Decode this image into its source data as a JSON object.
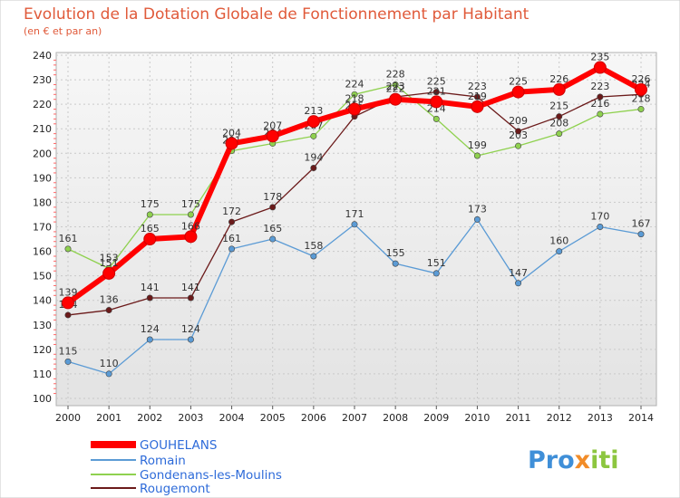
{
  "chart_data": {
    "type": "line",
    "title": "Evolution de la Dotation Globale de Fonctionnement par Habitant",
    "subtitle": "(en € et par an)",
    "xlabel": "",
    "ylabel": "",
    "x": [
      "2000",
      "2001",
      "2002",
      "2003",
      "2004",
      "2005",
      "2006",
      "2007",
      "2008",
      "2009",
      "2010",
      "2011",
      "2012",
      "2013",
      "2014"
    ],
    "ylim": [
      100,
      240
    ],
    "yticks": [
      "100",
      "110",
      "120",
      "130",
      "140",
      "150",
      "160",
      "170",
      "180",
      "190",
      "200",
      "210",
      "220",
      "230",
      "240"
    ],
    "grid": true,
    "legend": "bottom-left",
    "series": [
      {
        "name": "GOUHELANS",
        "color": "#ff0000",
        "values": [
          139,
          151,
          165,
          166,
          204,
          207,
          213,
          218,
          222,
          221,
          219,
          225,
          226,
          235,
          226
        ],
        "labels": [
          "139",
          "151",
          "165",
          "166",
          "204",
          "207",
          "213",
          "218",
          "222",
          "221",
          "219",
          "225",
          "226",
          "235",
          "226"
        ]
      },
      {
        "name": "Romain",
        "color": "#5b9bd5",
        "values": [
          115,
          110,
          124,
          124,
          161,
          165,
          158,
          171,
          155,
          151,
          173,
          147,
          160,
          170,
          167
        ],
        "labels": [
          "115",
          "110",
          "124",
          "124",
          "161",
          "165",
          "158",
          "171",
          "155",
          "151",
          "173",
          "147",
          "160",
          "170",
          "167"
        ]
      },
      {
        "name": "Gondenans-les-Moulins",
        "color": "#8fd14f",
        "values": [
          161,
          153,
          175,
          175,
          201,
          204,
          207,
          224,
          228,
          214,
          199,
          203,
          208,
          216,
          218
        ],
        "labels": [
          "161",
          "153",
          "175",
          "175",
          "201",
          "204",
          "207",
          "224",
          "228",
          "214",
          "199",
          "203",
          "208",
          "216",
          "218"
        ]
      },
      {
        "name": "Rougemont",
        "color": "#6b1a1a",
        "values": [
          134,
          136,
          141,
          141,
          172,
          178,
          194,
          215,
          223,
          225,
          223,
          209,
          215,
          223,
          224
        ],
        "labels": [
          "134",
          "136",
          "141",
          "141",
          "172",
          "178",
          "194",
          "215",
          "223",
          "225",
          "223",
          "209",
          "215",
          "223",
          "224"
        ]
      }
    ]
  },
  "brand": {
    "prefix": "Pro",
    "x": "x",
    "suffix": "iti"
  }
}
